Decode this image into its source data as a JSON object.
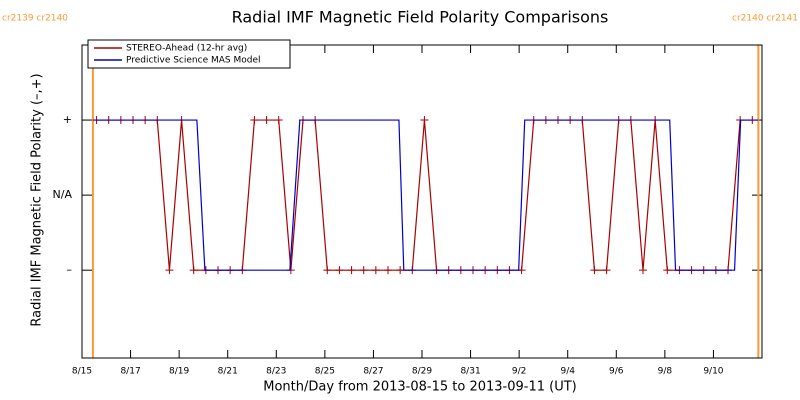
{
  "chart_data": {
    "type": "line",
    "title": "Radial IMF Magnetic Field Polarity Comparisons",
    "xlabel": "Month/Day from 2013-08-15 to 2013-09-11 (UT)",
    "ylabel": "Radial IMF Magnetic Field Polarity (–,+)",
    "xlim": [
      0,
      28
    ],
    "xticks": [
      {
        "value": 0,
        "label": "8/15"
      },
      {
        "value": 2,
        "label": "8/17"
      },
      {
        "value": 4,
        "label": "8/19"
      },
      {
        "value": 6,
        "label": "8/21"
      },
      {
        "value": 8,
        "label": "8/23"
      },
      {
        "value": 10,
        "label": "8/25"
      },
      {
        "value": 12,
        "label": "8/27"
      },
      {
        "value": 14,
        "label": "8/29"
      },
      {
        "value": 16,
        "label": "8/31"
      },
      {
        "value": 18,
        "label": "9/2"
      },
      {
        "value": 20,
        "label": "9/4"
      },
      {
        "value": 22,
        "label": "9/6"
      },
      {
        "value": 24,
        "label": "9/8"
      },
      {
        "value": 26,
        "label": "9/10"
      }
    ],
    "ylim": [
      -2.17,
      2
    ],
    "yticks": [
      {
        "value": 1,
        "label": "+"
      },
      {
        "value": 0,
        "label": "N/A"
      },
      {
        "value": -1,
        "label": "–"
      }
    ],
    "legend": "upper left",
    "markers": [
      {
        "x": 0.45,
        "label": "cr2139 cr2140",
        "color": "#ff9933"
      },
      {
        "x": 27.85,
        "label": "cr2140 cr2141",
        "color": "#ff9933"
      }
    ],
    "series": [
      {
        "name": "STEREO-Ahead (12-hr avg)",
        "color": "#aa0000",
        "marker": "+",
        "x": [
          0.6,
          1.1,
          1.6,
          2.1,
          2.6,
          3.1,
          3.6,
          4.1,
          4.6,
          5.1,
          5.6,
          6.1,
          6.6,
          7.1,
          7.6,
          8.1,
          8.6,
          9.1,
          9.6,
          10.1,
          10.6,
          11.1,
          11.6,
          12.1,
          12.6,
          13.1,
          13.6,
          14.1,
          14.6,
          15.1,
          15.6,
          16.1,
          16.6,
          17.1,
          17.6,
          18.1,
          18.6,
          19.1,
          19.6,
          20.1,
          20.6,
          21.1,
          21.6,
          22.1,
          22.6,
          23.1,
          23.6,
          24.1,
          24.6,
          25.1,
          25.6,
          26.1,
          26.6,
          27.1,
          27.6
        ],
        "values": [
          1,
          1,
          1,
          1,
          1,
          1,
          -1,
          1,
          -1,
          -1,
          -1,
          -1,
          -1,
          1,
          1,
          1,
          -1,
          1,
          1,
          -1,
          -1,
          -1,
          -1,
          -1,
          -1,
          -1,
          -1,
          1,
          -1,
          -1,
          -1,
          -1,
          -1,
          -1,
          -1,
          -1,
          1,
          1,
          1,
          1,
          1,
          -1,
          -1,
          1,
          1,
          -1,
          1,
          -1,
          -1,
          -1,
          -1,
          -1,
          -1,
          1,
          1
        ]
      },
      {
        "name": "Predictive Science MAS Model",
        "color": "#0000cc",
        "x": [
          0.45,
          4.73,
          5.06,
          8.56,
          8.97,
          13.05,
          13.25,
          17.98,
          18.23,
          24.2,
          24.44,
          26.87,
          27.12,
          27.85
        ],
        "values": [
          1,
          1,
          -1,
          -1,
          1,
          1,
          -1,
          -1,
          1,
          1,
          -1,
          -1,
          1,
          1
        ]
      }
    ]
  }
}
